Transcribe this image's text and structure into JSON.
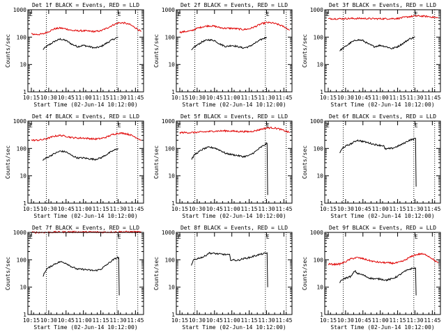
{
  "figure": {
    "x_axis_label": "Start Time (02-Jun-14 10:12:00)",
    "y_axis_label": "Counts/sec",
    "marker_label": "E"
  },
  "colors": {
    "events": "#000000",
    "lld": "#e00000",
    "axes": "#000000"
  },
  "chart_data": [
    {
      "type": "line",
      "title": "Det 1f BLACK = Events, RED = LLD",
      "xlabel": "Start Time (02-Jun-14 10:12:00)",
      "ylabel": "Counts/sec",
      "x_ticks": [
        "10:15",
        "10:30",
        "10:45",
        "11:00",
        "11:15",
        "11:30",
        "11:45"
      ],
      "y_ticks": [
        "1",
        "10",
        "100",
        "1000"
      ],
      "y_scale": "log",
      "ylim": [
        1,
        1000
      ],
      "xlim": [
        "10:12",
        "11:52"
      ],
      "marker_times": [
        "10:28",
        "11:29",
        "11:47"
      ],
      "marker_letters": [
        "E",
        "E"
      ],
      "series": [
        {
          "color": "#000000",
          "x": [
            "10:25",
            "10:28",
            "10:35",
            "10:40",
            "10:45",
            "10:50",
            "10:55",
            "11:00",
            "11:05",
            "11:10",
            "11:15",
            "11:20",
            "11:25",
            "11:30"
          ],
          "values": [
            35,
            45,
            70,
            85,
            75,
            55,
            45,
            50,
            45,
            40,
            45,
            60,
            80,
            100
          ]
        },
        {
          "color": "#e00000",
          "x": [
            "10:15",
            "10:20",
            "10:25",
            "10:30",
            "10:35",
            "10:40",
            "10:45",
            "10:50",
            "10:55",
            "11:00",
            "11:05",
            "11:10",
            "11:15",
            "11:20",
            "11:25",
            "11:30",
            "11:35",
            "11:40",
            "11:45",
            "11:50"
          ],
          "values": [
            130,
            125,
            130,
            160,
            200,
            215,
            200,
            175,
            170,
            170,
            165,
            160,
            170,
            210,
            270,
            330,
            330,
            290,
            220,
            160
          ]
        }
      ]
    },
    {
      "type": "line",
      "title": "Det 2f BLACK = Events, RED = LLD",
      "xlabel": "Start Time (02-Jun-14 10:12:00)",
      "ylabel": "Counts/sec",
      "x_ticks": [
        "10:15",
        "10:30",
        "10:45",
        "11:00",
        "11:15",
        "11:30",
        "11:45"
      ],
      "y_ticks": [
        "1",
        "10",
        "100",
        "1000"
      ],
      "y_scale": "log",
      "ylim": [
        1,
        1000
      ],
      "xlim": [
        "10:12",
        "11:52"
      ],
      "marker_times": [
        "10:28",
        "11:29",
        "11:47"
      ],
      "marker_letters": [
        "E",
        "E"
      ],
      "series": [
        {
          "color": "#000000",
          "x": [
            "10:25",
            "10:28",
            "10:35",
            "10:40",
            "10:45",
            "10:50",
            "10:55",
            "11:00",
            "11:05",
            "11:10",
            "11:15",
            "11:20",
            "11:25",
            "11:30"
          ],
          "values": [
            32,
            45,
            70,
            80,
            75,
            55,
            45,
            50,
            45,
            40,
            45,
            60,
            80,
            100
          ]
        },
        {
          "color": "#e00000",
          "x": [
            "10:15",
            "10:20",
            "10:25",
            "10:30",
            "10:35",
            "10:40",
            "10:45",
            "10:50",
            "10:55",
            "11:00",
            "11:05",
            "11:10",
            "11:15",
            "11:20",
            "11:25",
            "11:30",
            "11:35",
            "11:40",
            "11:45",
            "11:50"
          ],
          "values": [
            150,
            160,
            170,
            210,
            240,
            260,
            250,
            220,
            210,
            210,
            200,
            190,
            200,
            240,
            300,
            340,
            330,
            290,
            240,
            180
          ]
        }
      ]
    },
    {
      "type": "line",
      "title": "Det 3f BLACK = Events, RED = LLD",
      "xlabel": "Start Time (02-Jun-14 10:12:00)",
      "ylabel": "Counts/sec",
      "x_ticks": [
        "10:15",
        "10:30",
        "10:45",
        "11:00",
        "11:15",
        "11:30",
        "11:45"
      ],
      "y_ticks": [
        "1",
        "10",
        "100",
        "1000"
      ],
      "y_scale": "log",
      "ylim": [
        1,
        1000
      ],
      "xlim": [
        "10:12",
        "11:52"
      ],
      "marker_times": [
        "10:28",
        "11:29",
        "11:47"
      ],
      "marker_letters": [
        "E",
        "E"
      ],
      "series": [
        {
          "color": "#000000",
          "x": [
            "10:25",
            "10:28",
            "10:35",
            "10:40",
            "10:45",
            "10:50",
            "10:55",
            "11:00",
            "11:05",
            "11:10",
            "11:15",
            "11:20",
            "11:25",
            "11:30"
          ],
          "values": [
            32,
            40,
            65,
            80,
            75,
            55,
            45,
            50,
            45,
            38,
            45,
            60,
            85,
            100
          ]
        },
        {
          "color": "#e00000",
          "x": [
            "10:15",
            "10:25",
            "10:35",
            "10:45",
            "10:55",
            "11:05",
            "11:15",
            "11:20",
            "11:25",
            "11:30",
            "11:35",
            "11:40",
            "11:45",
            "11:50"
          ],
          "values": [
            470,
            470,
            480,
            480,
            470,
            470,
            480,
            520,
            560,
            590,
            590,
            570,
            540,
            500
          ]
        }
      ]
    },
    {
      "type": "line",
      "title": "Det 4f BLACK = Events, RED = LLD",
      "xlabel": "Start Time (02-Jun-14 10:12:00)",
      "ylabel": "Counts/sec",
      "x_ticks": [
        "10:15",
        "10:30",
        "10:45",
        "11:00",
        "11:15",
        "11:30",
        "11:45"
      ],
      "y_ticks": [
        "1",
        "10",
        "100",
        "1000"
      ],
      "y_scale": "log",
      "ylim": [
        1,
        1000
      ],
      "xlim": [
        "10:12",
        "11:52"
      ],
      "marker_times": [
        "10:28",
        "11:29",
        "11:47"
      ],
      "marker_letters": [
        "E",
        "E"
      ],
      "series": [
        {
          "color": "#000000",
          "x": [
            "10:25",
            "10:28",
            "10:35",
            "10:40",
            "10:45",
            "10:50",
            "10:55",
            "11:00",
            "11:05",
            "11:10",
            "11:15",
            "11:20",
            "11:25",
            "11:30"
          ],
          "values": [
            38,
            45,
            65,
            80,
            75,
            55,
            45,
            45,
            42,
            40,
            45,
            60,
            80,
            100
          ]
        },
        {
          "color": "#e00000",
          "x": [
            "10:15",
            "10:20",
            "10:25",
            "10:30",
            "10:35",
            "10:40",
            "10:45",
            "10:50",
            "10:55",
            "11:00",
            "11:05",
            "11:10",
            "11:15",
            "11:20",
            "11:25",
            "11:30",
            "11:35",
            "11:40",
            "11:45",
            "11:50"
          ],
          "values": [
            200,
            200,
            210,
            240,
            280,
            300,
            280,
            250,
            240,
            240,
            230,
            220,
            230,
            260,
            320,
            360,
            360,
            320,
            260,
            200
          ]
        }
      ]
    },
    {
      "type": "line",
      "title": "Det 5f BLACK = Events, RED = LLD",
      "xlabel": "Start Time (02-Jun-14 10:12:00)",
      "ylabel": "Counts/sec",
      "x_ticks": [
        "10:15",
        "10:30",
        "10:45",
        "11:00",
        "11:15",
        "11:30",
        "11:45"
      ],
      "y_ticks": [
        "1",
        "10",
        "100",
        "1000"
      ],
      "y_scale": "log",
      "ylim": [
        1,
        1000
      ],
      "xlim": [
        "10:12",
        "11:52"
      ],
      "marker_times": [
        "10:28",
        "11:29",
        "11:47"
      ],
      "marker_letters": [
        "E",
        "E"
      ],
      "series": [
        {
          "color": "#000000",
          "x": [
            "10:25",
            "10:28",
            "10:35",
            "10:40",
            "10:45",
            "10:50",
            "10:55",
            "11:00",
            "11:05",
            "11:10",
            "11:15",
            "11:20",
            "11:25",
            "11:29",
            "11:30",
            "11:31"
          ],
          "values": [
            40,
            60,
            95,
            110,
            105,
            85,
            65,
            60,
            55,
            50,
            55,
            75,
            110,
            140,
            150,
            2
          ]
        },
        {
          "color": "#e00000",
          "x": [
            "10:15",
            "10:25",
            "10:35",
            "10:45",
            "10:55",
            "11:05",
            "11:15",
            "11:20",
            "11:25",
            "11:30",
            "11:35",
            "11:40",
            "11:45",
            "11:50"
          ],
          "values": [
            380,
            380,
            400,
            430,
            440,
            420,
            410,
            440,
            500,
            560,
            570,
            530,
            450,
            380
          ]
        }
      ]
    },
    {
      "type": "line",
      "title": "Det 6f BLACK = Events, RED = LLD",
      "xlabel": "Start Time (02-Jun-14 10:12:00)",
      "ylabel": "Counts/sec",
      "x_ticks": [
        "10:15",
        "10:30",
        "10:45",
        "11:00",
        "11:15",
        "11:30",
        "11:45"
      ],
      "y_ticks": [
        "1",
        "10",
        "100",
        "1000"
      ],
      "y_scale": "log",
      "ylim": [
        1,
        1000
      ],
      "xlim": [
        "10:12",
        "11:52"
      ],
      "marker_times": [
        "10:28",
        "11:29",
        "11:47"
      ],
      "marker_letters": [
        "E",
        "E"
      ],
      "series": [
        {
          "color": "#000000",
          "x": [
            "10:25",
            "10:28",
            "10:35",
            "10:40",
            "10:45",
            "10:50",
            "10:55",
            "11:00",
            "11:03",
            "11:04",
            "11:10",
            "11:15",
            "11:20",
            "11:25",
            "11:29",
            "11:30",
            "11:31"
          ],
          "values": [
            70,
            110,
            150,
            200,
            180,
            160,
            140,
            130,
            125,
            95,
            100,
            120,
            150,
            200,
            220,
            230,
            4
          ]
        }
      ]
    },
    {
      "type": "line",
      "title": "Det 7f BLACK = Events, RED = LLD",
      "xlabel": "Start Time (02-Jun-14 10:12:00)",
      "ylabel": "Counts/sec",
      "x_ticks": [
        "10:15",
        "10:30",
        "10:45",
        "11:00",
        "11:15",
        "11:30",
        "11:45"
      ],
      "y_ticks": [
        "1",
        "10",
        "100",
        "1000"
      ],
      "y_scale": "log",
      "ylim": [
        1,
        1000
      ],
      "xlim": [
        "10:12",
        "11:52"
      ],
      "marker_times": [
        "10:28",
        "11:29",
        "11:47"
      ],
      "marker_letters": [
        "E",
        "E"
      ],
      "series": [
        {
          "color": "#000000",
          "x": [
            "10:25",
            "10:28",
            "10:35",
            "10:40",
            "10:45",
            "10:50",
            "10:55",
            "11:00",
            "11:05",
            "11:10",
            "11:15",
            "11:20",
            "11:25",
            "11:29",
            "11:30",
            "11:31"
          ],
          "values": [
            25,
            45,
            70,
            85,
            75,
            55,
            45,
            45,
            42,
            40,
            45,
            65,
            95,
            120,
            120,
            5
          ]
        },
        {
          "color": "#e00000",
          "x": [
            "10:15",
            "10:25",
            "10:35",
            "10:45",
            "10:55",
            "11:05",
            "11:15",
            "11:25",
            "11:35",
            "11:45",
            "11:50"
          ],
          "values": [
            1000,
            1000,
            1020,
            1040,
            1040,
            1030,
            1020,
            1030,
            1050,
            1040,
            1020
          ]
        }
      ]
    },
    {
      "type": "line",
      "title": "Det 8f BLACK = Events, RED = LLD",
      "xlabel": "Start Time (02-Jun-14 10:12:00)",
      "ylabel": "Counts/sec",
      "x_ticks": [
        "10:15",
        "10:30",
        "10:45",
        "11:00",
        "11:15",
        "11:30",
        "11:45"
      ],
      "y_ticks": [
        "1",
        "10",
        "100",
        "1000"
      ],
      "y_scale": "log",
      "ylim": [
        1,
        1000
      ],
      "xlim": [
        "10:12",
        "11:52"
      ],
      "marker_times": [
        "10:28",
        "11:29",
        "11:47"
      ],
      "marker_letters": [
        "E",
        "E"
      ],
      "series": [
        {
          "color": "#000000",
          "x": [
            "10:25",
            "10:27",
            "10:30",
            "10:33",
            "10:36",
            "10:40",
            "10:45",
            "10:50",
            "10:55",
            "10:58",
            "10:59",
            "11:05",
            "11:10",
            "11:15",
            "11:20",
            "11:25",
            "11:29",
            "11:30",
            "11:31"
          ],
          "values": [
            60,
            100,
            110,
            120,
            130,
            175,
            170,
            160,
            155,
            150,
            100,
            95,
            110,
            120,
            140,
            160,
            170,
            175,
            10
          ]
        }
      ]
    },
    {
      "type": "line",
      "title": "Det 9f BLACK = Events, RED = LLD",
      "xlabel": "Start Time (02-Jun-14 10:12:00)",
      "ylabel": "Counts/sec",
      "x_ticks": [
        "10:15",
        "10:30",
        "10:45",
        "11:00",
        "11:15",
        "11:30",
        "11:45"
      ],
      "y_ticks": [
        "1",
        "10",
        "100",
        "1000"
      ],
      "y_scale": "log",
      "ylim": [
        1,
        1000
      ],
      "xlim": [
        "10:12",
        "11:52"
      ],
      "marker_times": [
        "10:28",
        "11:29",
        "11:47"
      ],
      "marker_letters": [
        "E",
        "E"
      ],
      "series": [
        {
          "color": "#000000",
          "x": [
            "10:25",
            "10:28",
            "10:35",
            "10:38",
            "10:40",
            "10:45",
            "10:50",
            "10:55",
            "11:00",
            "11:05",
            "11:10",
            "11:15",
            "11:20",
            "11:25",
            "11:29",
            "11:30",
            "11:31"
          ],
          "values": [
            15,
            20,
            25,
            40,
            32,
            28,
            22,
            20,
            20,
            18,
            20,
            25,
            35,
            45,
            50,
            48,
            5
          ]
        },
        {
          "color": "#e00000",
          "x": [
            "10:15",
            "10:20",
            "10:25",
            "10:30",
            "10:35",
            "10:40",
            "10:45",
            "10:50",
            "10:55",
            "11:00",
            "11:05",
            "11:10",
            "11:15",
            "11:20",
            "11:25",
            "11:30",
            "11:35",
            "11:40",
            "11:45",
            "11:50"
          ],
          "values": [
            70,
            68,
            70,
            85,
            110,
            120,
            110,
            95,
            85,
            80,
            78,
            75,
            78,
            90,
            120,
            150,
            165,
            150,
            110,
            75
          ]
        }
      ]
    }
  ]
}
